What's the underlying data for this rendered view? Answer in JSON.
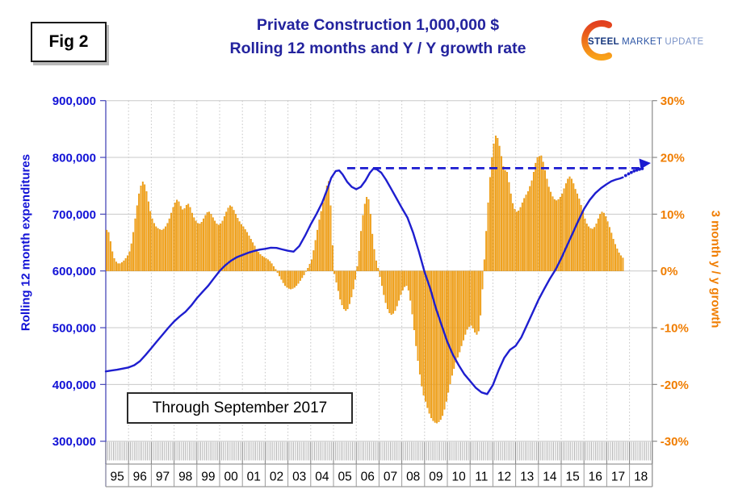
{
  "figure": {
    "fig_label": "Fig 2",
    "title_line1": "Private Construction 1,000,000 $",
    "title_line2": "Rolling 12 months and Y / Y growth rate",
    "annotation": "Through September 2017"
  },
  "logo": {
    "word1": "STEEL",
    "word2": "MARKET",
    "word3": "UPDATE"
  },
  "axes": {
    "left_label": "Rolling 12 month expenditures",
    "right_label": "3 month y / y growth",
    "left_ticks": [
      "900,000",
      "800,000",
      "700,000",
      "600,000",
      "500,000",
      "400,000",
      "300,000"
    ],
    "right_ticks": [
      "30%",
      "20%",
      "10%",
      "0%",
      "-10%",
      "-20%",
      "-30%"
    ],
    "year_labels": [
      "95",
      "96",
      "97",
      "98",
      "99",
      "00",
      "01",
      "02",
      "03",
      "04",
      "05",
      "06",
      "07",
      "08",
      "09",
      "10",
      "11",
      "12",
      "13",
      "14",
      "15",
      "16",
      "17",
      "18"
    ]
  },
  "chart_data": {
    "type": "combo (monthly bar + line)",
    "title": "Private Construction 1,000,000 $ — Rolling 12 months and Y / Y growth rate",
    "x_range": [
      1995,
      2019
    ],
    "left_axis": {
      "label": "Rolling 12 month expenditures",
      "min": 300000,
      "max": 900000,
      "step": 100000
    },
    "right_axis": {
      "label": "3 month y / y growth (%)",
      "min": -30,
      "max": 30,
      "step": 10
    },
    "grid": "horizontal solid每100k, vertical dotted each year",
    "bars": {
      "name": "3 month y / y growth (%), monthly Jan 1995 – Sep 2017",
      "start_year": 1995,
      "values_by_year": {
        "1995": [
          7.2,
          6.8,
          5.2,
          3.4,
          2.2,
          1.6,
          1.3,
          1.3,
          1.5,
          1.8,
          2.2,
          2.7
        ],
        "1996": [
          3.4,
          4.8,
          6.8,
          9.2,
          11.5,
          13.6,
          15.0,
          15.7,
          15.2,
          14.0,
          12.2,
          10.5
        ],
        "1997": [
          9.2,
          8.4,
          7.8,
          7.5,
          7.3,
          7.2,
          7.4,
          7.8,
          8.4,
          9.2,
          10.2,
          11.2
        ],
        "1998": [
          12.0,
          12.5,
          12.2,
          11.4,
          10.8,
          11.0,
          11.6,
          11.8,
          11.2,
          10.2,
          9.4,
          8.8
        ],
        "1999": [
          8.4,
          8.3,
          8.6,
          9.2,
          9.8,
          10.3,
          10.4,
          10.0,
          9.4,
          8.8,
          8.3,
          8.1
        ],
        "2000": [
          8.3,
          8.8,
          9.6,
          10.4,
          11.1,
          11.5,
          11.3,
          10.7,
          10.0,
          9.3,
          8.7,
          8.2
        ],
        "2001": [
          7.8,
          7.3,
          6.8,
          6.2,
          5.6,
          5.0,
          4.4,
          3.8,
          3.3,
          2.9,
          2.6,
          2.4
        ],
        "2002": [
          2.2,
          2.0,
          1.7,
          1.3,
          0.8,
          0.3,
          -0.3,
          -0.9,
          -1.5,
          -2.1,
          -2.6,
          -2.9
        ],
        "2003": [
          -3.1,
          -3.2,
          -3.1,
          -2.9,
          -2.6,
          -2.2,
          -1.7,
          -1.2,
          -0.7,
          -0.1,
          0.5,
          1.2
        ],
        "2004": [
          2.0,
          3.6,
          5.4,
          7.2,
          9.0,
          10.5,
          12.0,
          13.5,
          15.0,
          15.8,
          11.5,
          4.5
        ],
        "2005": [
          -0.5,
          -2.0,
          -3.5,
          -5.0,
          -6.0,
          -6.7,
          -7.0,
          -6.7,
          -5.8,
          -4.6,
          -3.2,
          -1.5
        ],
        "2006": [
          0.8,
          3.5,
          7.0,
          9.8,
          11.8,
          13.0,
          12.6,
          10.0,
          6.5,
          3.8,
          1.8,
          0.5
        ],
        "2007": [
          -1.0,
          -2.6,
          -4.2,
          -5.6,
          -6.7,
          -7.4,
          -7.7,
          -7.5,
          -7.0,
          -6.2,
          -5.2,
          -4.2
        ],
        "2008": [
          -3.4,
          -2.8,
          -2.6,
          -3.4,
          -5.2,
          -7.6,
          -10.4,
          -13.2,
          -15.8,
          -18.2,
          -20.3,
          -21.9
        ],
        "2009": [
          -23.0,
          -24.1,
          -25.1,
          -25.9,
          -26.4,
          -26.7,
          -26.8,
          -26.6,
          -26.2,
          -25.5,
          -24.4,
          -23.0
        ],
        "2010": [
          -21.4,
          -19.9,
          -18.4,
          -17.2,
          -16.1,
          -15.2,
          -14.3,
          -13.2,
          -12.2,
          -11.2,
          -10.3,
          -9.8
        ],
        "2011": [
          -9.6,
          -10.1,
          -10.8,
          -11.2,
          -10.6,
          -7.8,
          -3.2,
          2.0,
          7.0,
          12.0,
          16.5,
          20.0
        ],
        "2012": [
          22.4,
          23.8,
          23.4,
          22.0,
          20.2,
          18.4,
          17.7,
          17.4,
          15.6,
          13.6,
          11.9,
          10.9
        ],
        "2013": [
          10.4,
          10.6,
          11.2,
          12.0,
          12.8,
          13.4,
          14.0,
          14.9,
          15.9,
          17.4,
          19.0,
          20.0
        ],
        "2014": [
          20.2,
          20.3,
          19.2,
          17.7,
          16.2,
          14.8,
          13.9,
          13.1,
          12.6,
          12.4,
          12.6,
          13.0
        ],
        "2015": [
          13.6,
          14.5,
          15.4,
          16.2,
          16.6,
          16.2,
          15.4,
          14.4,
          13.6,
          12.7,
          11.6,
          10.4
        ],
        "2016": [
          9.2,
          8.3,
          7.8,
          7.5,
          7.4,
          7.7,
          8.3,
          9.2,
          10.0,
          10.4,
          10.2,
          9.6
        ],
        "2017": [
          8.7,
          7.7,
          6.7,
          5.6,
          4.7,
          3.9,
          3.2,
          2.7,
          2.3
        ]
      }
    },
    "line": {
      "name": "Rolling 12 month expenditures (thousands of 1,000,000 $ axis units)",
      "unit": "left axis value / 1000",
      "points": [
        [
          1995.0,
          423
        ],
        [
          1995.25,
          424.5
        ],
        [
          1995.5,
          426
        ],
        [
          1995.75,
          428
        ],
        [
          1996.0,
          430
        ],
        [
          1996.25,
          434
        ],
        [
          1996.5,
          441
        ],
        [
          1996.75,
          452
        ],
        [
          1997.0,
          464
        ],
        [
          1997.25,
          476
        ],
        [
          1997.5,
          488
        ],
        [
          1997.75,
          500
        ],
        [
          1998.0,
          511
        ],
        [
          1998.25,
          520
        ],
        [
          1998.5,
          528
        ],
        [
          1998.75,
          539
        ],
        [
          1999.0,
          552
        ],
        [
          1999.25,
          563
        ],
        [
          1999.5,
          574
        ],
        [
          1999.75,
          587
        ],
        [
          2000.0,
          600
        ],
        [
          2000.25,
          610
        ],
        [
          2000.5,
          618
        ],
        [
          2000.75,
          624
        ],
        [
          2001.0,
          628
        ],
        [
          2001.25,
          632
        ],
        [
          2001.5,
          635
        ],
        [
          2001.75,
          637.5
        ],
        [
          2002.0,
          639
        ],
        [
          2002.25,
          641
        ],
        [
          2002.5,
          640.5
        ],
        [
          2002.75,
          638
        ],
        [
          2003.0,
          635.5
        ],
        [
          2003.25,
          634
        ],
        [
          2003.5,
          644
        ],
        [
          2003.75,
          662
        ],
        [
          2004.0,
          682
        ],
        [
          2004.25,
          700
        ],
        [
          2004.5,
          720
        ],
        [
          2004.75,
          746
        ],
        [
          2004.9,
          764
        ],
        [
          2005.1,
          776
        ],
        [
          2005.25,
          777
        ],
        [
          2005.4,
          770
        ],
        [
          2005.6,
          757
        ],
        [
          2005.8,
          748
        ],
        [
          2006.0,
          744
        ],
        [
          2006.2,
          748
        ],
        [
          2006.4,
          759
        ],
        [
          2006.6,
          773
        ],
        [
          2006.75,
          780
        ],
        [
          2006.9,
          779
        ],
        [
          2007.1,
          773
        ],
        [
          2007.3,
          761
        ],
        [
          2007.5,
          747
        ],
        [
          2007.75,
          729
        ],
        [
          2008.0,
          711
        ],
        [
          2008.25,
          694
        ],
        [
          2008.5,
          667
        ],
        [
          2008.75,
          634
        ],
        [
          2009.0,
          598
        ],
        [
          2009.25,
          569
        ],
        [
          2009.5,
          534
        ],
        [
          2009.75,
          504
        ],
        [
          2010.0,
          475
        ],
        [
          2010.25,
          452
        ],
        [
          2010.5,
          434
        ],
        [
          2010.75,
          418
        ],
        [
          2011.0,
          406
        ],
        [
          2011.25,
          394
        ],
        [
          2011.5,
          386
        ],
        [
          2011.75,
          383
        ],
        [
          2012.0,
          399
        ],
        [
          2012.25,
          425
        ],
        [
          2012.5,
          447
        ],
        [
          2012.75,
          461
        ],
        [
          2013.0,
          468
        ],
        [
          2013.25,
          483
        ],
        [
          2013.5,
          505
        ],
        [
          2013.75,
          527
        ],
        [
          2014.0,
          549
        ],
        [
          2014.25,
          568
        ],
        [
          2014.5,
          586
        ],
        [
          2014.75,
          602
        ],
        [
          2015.0,
          622
        ],
        [
          2015.25,
          644
        ],
        [
          2015.5,
          666
        ],
        [
          2015.75,
          688
        ],
        [
          2016.0,
          709
        ],
        [
          2016.25,
          725
        ],
        [
          2016.5,
          737
        ],
        [
          2016.75,
          746
        ],
        [
          2017.0,
          753
        ],
        [
          2017.2,
          758
        ],
        [
          2017.4,
          761
        ],
        [
          2017.58,
          763
        ],
        [
          2017.71,
          765
        ]
      ],
      "projection_dotted": [
        [
          2017.83,
          768
        ],
        [
          2017.96,
          771
        ],
        [
          2018.08,
          773.5
        ],
        [
          2018.2,
          776
        ],
        [
          2018.32,
          777.5
        ],
        [
          2018.44,
          779
        ],
        [
          2018.56,
          780.2
        ]
      ]
    },
    "dashed_reference": {
      "level_left_axis": 781000,
      "level_right_axis_pct": 18.1,
      "from_x": 2005.6,
      "to_x": 2018.6,
      "arrow_at_right_end": true
    },
    "colors": {
      "bar_fill": "#F9A51B",
      "bar_edge": "#D88A00",
      "line_blue": "#1E1ECF",
      "dashed_blue": "#1C1CD0",
      "title_navy": "#23239E",
      "left_axis_text": "#1212D6",
      "right_axis_text": "#F07D00",
      "grid": "#C8C8C8",
      "logo_orange_1": "#E2401E",
      "logo_orange_2": "#F9A219"
    }
  }
}
